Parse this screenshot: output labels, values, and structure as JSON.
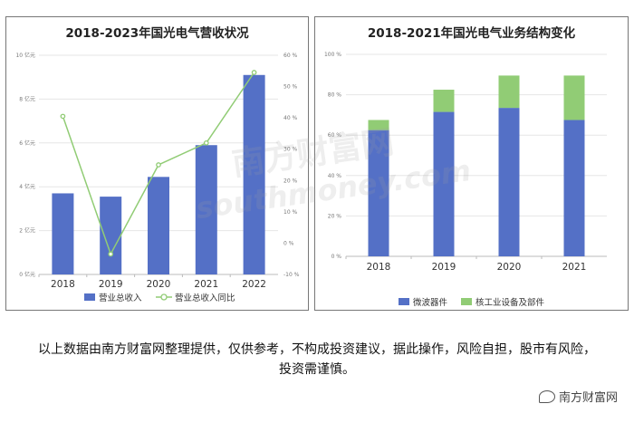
{
  "charts": {
    "left_title": "2018-2023年国光电气营收状况",
    "right_title": "2018-2021年国光电气业务结构变化"
  },
  "chart_data": [
    {
      "type": "bar",
      "title": "2018-2023年国光电气营收状况",
      "categories": [
        "2018",
        "2019",
        "2020",
        "2021",
        "2022"
      ],
      "series": [
        {
          "name": "营业总收入",
          "type": "bar",
          "axis": "left",
          "color": "#5470c6",
          "values": [
            3.7,
            3.55,
            4.45,
            5.9,
            9.1
          ]
        },
        {
          "name": "营业总收入同比",
          "type": "line",
          "axis": "right",
          "color": "#91cc75",
          "values": [
            40.5,
            -3.5,
            25.0,
            32.0,
            54.5
          ]
        }
      ],
      "y_left": {
        "ylim": [
          0,
          10
        ],
        "ticks": [
          "0 亿元",
          "2 亿元",
          "4 亿元",
          "6 亿元",
          "8 亿元",
          "10 亿元"
        ],
        "tick_values": [
          0,
          2,
          4,
          6,
          8,
          10
        ]
      },
      "y_right": {
        "ylim": [
          -10,
          60
        ],
        "ticks": [
          "-10 %",
          "0 %",
          "10 %",
          "20 %",
          "30 %",
          "40 %",
          "50 %",
          "60 %"
        ],
        "tick_values": [
          -10,
          0,
          10,
          20,
          30,
          40,
          50,
          60
        ]
      },
      "legend": "bottom",
      "grid": true
    },
    {
      "type": "bar",
      "stacked": true,
      "title": "2018-2021年国光电气业务结构变化",
      "categories": [
        "2018",
        "2019",
        "2020",
        "2021"
      ],
      "series": [
        {
          "name": "微波器件",
          "color": "#5470c6",
          "values": [
            62.5,
            71.5,
            73.5,
            67.5
          ]
        },
        {
          "name": "核工业设备及部件",
          "color": "#91cc75",
          "values": [
            5.0,
            11.0,
            16.0,
            22.0
          ]
        }
      ],
      "y": {
        "ylim": [
          0,
          100
        ],
        "ticks": [
          "0 %",
          "20 %",
          "40 %",
          "60 %",
          "80 %",
          "100 %"
        ],
        "tick_values": [
          0,
          20,
          40,
          60,
          80,
          100
        ]
      },
      "legend": "bottom",
      "grid": true
    }
  ],
  "footer": {
    "disclaimer": "以上数据由南方财富网整理提供，仅供参考，不构成投资建议，据此操作，风险自担，股市有风险，投资需谨慎。",
    "brand": "南方财富网"
  },
  "watermark": {
    "text_cn": "南方财富网",
    "text_en": "southmoney.com"
  }
}
